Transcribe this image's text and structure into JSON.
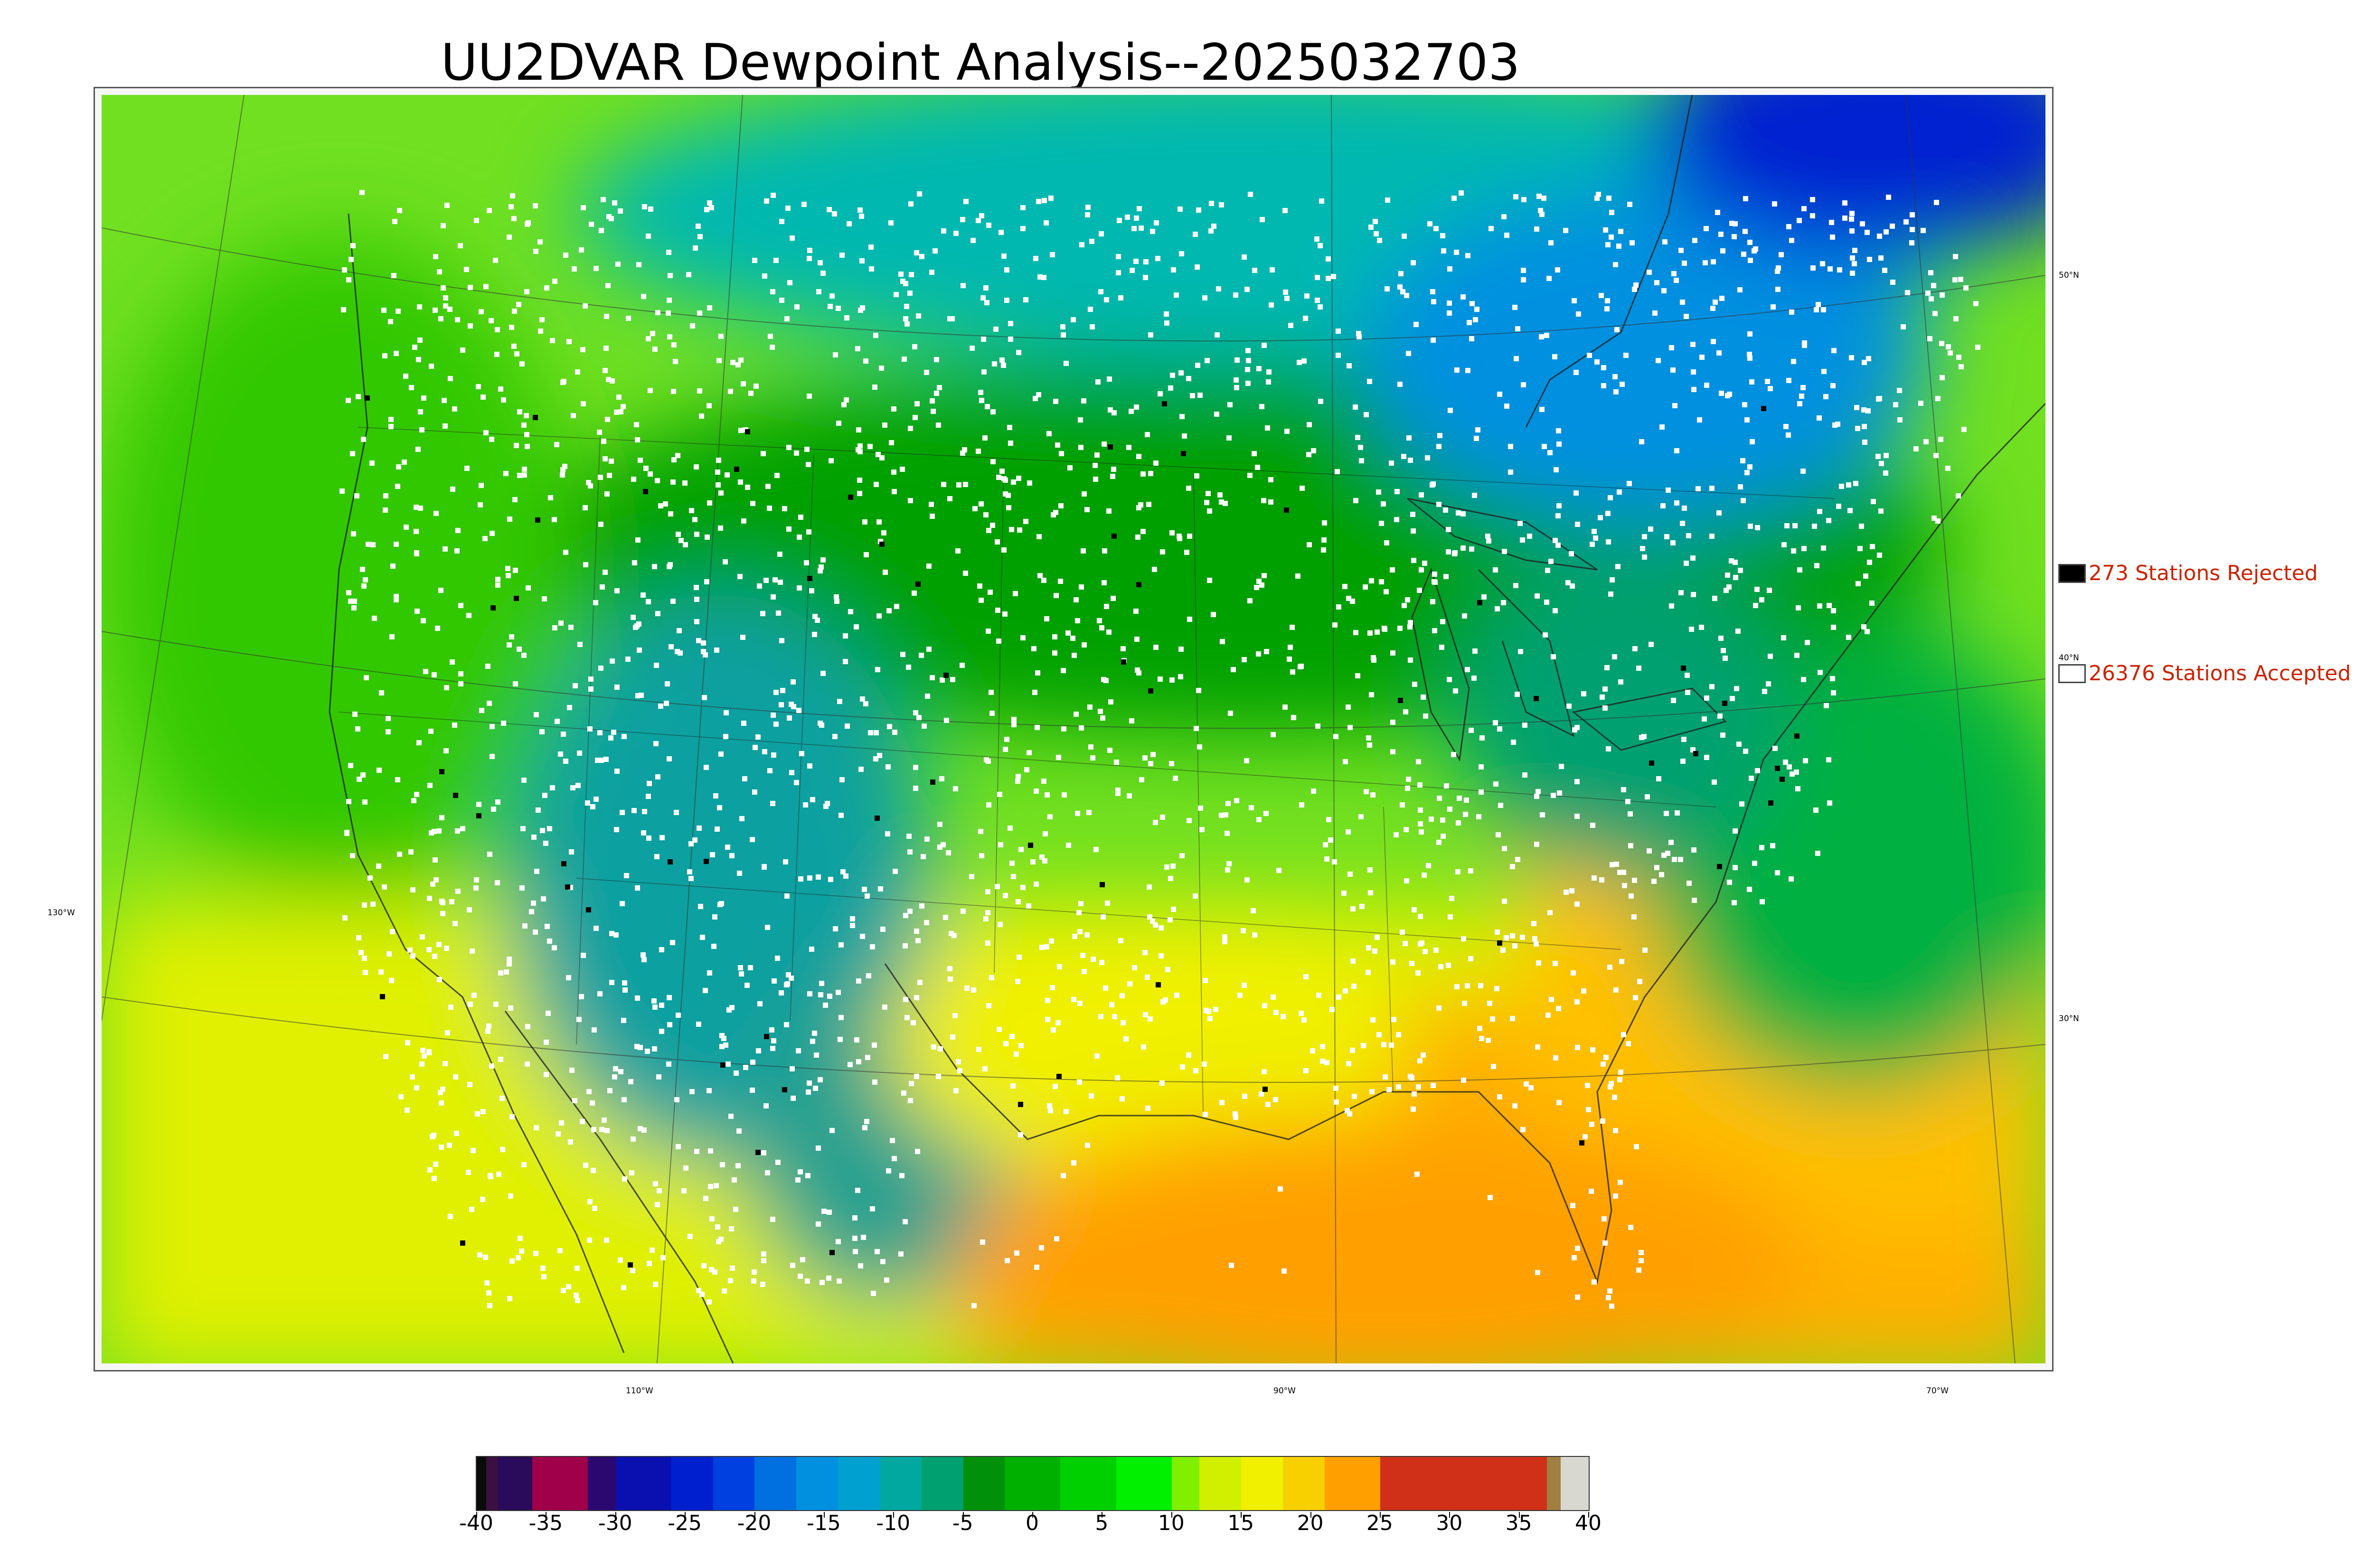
{
  "title": "UU2DVAR Dewpoint Analysis--2025032703",
  "legend": {
    "rejected": {
      "label": "273 Stations Rejected",
      "color": "#000000"
    },
    "accepted": {
      "label": "26376 Stations Accepted",
      "color": "#ffffff"
    }
  },
  "latitude_labels": [
    "50°N",
    "40°N",
    "30°N"
  ],
  "longitude_labels": [
    "130°W",
    "110°W",
    "90°W",
    "70°W"
  ],
  "colorbar": {
    "min": -40,
    "max": 40,
    "tick_labels": [
      "-40",
      "-35",
      "-30",
      "-25",
      "-20",
      "-15",
      "-10",
      "-5",
      "0",
      "5",
      "10",
      "15",
      "20",
      "25",
      "30",
      "35",
      "40"
    ],
    "segments": [
      {
        "from": -40,
        "to": -39.3,
        "color": "#0a0a0a"
      },
      {
        "from": -39.3,
        "to": -38.5,
        "color": "#3a1040"
      },
      {
        "from": -38.5,
        "to": -36,
        "color": "#2a0a5a"
      },
      {
        "from": -36,
        "to": -32,
        "color": "#a0004a"
      },
      {
        "from": -32,
        "to": -30,
        "color": "#2a0870"
      },
      {
        "from": -30,
        "to": -26,
        "color": "#0a10b0"
      },
      {
        "from": -26,
        "to": -23,
        "color": "#0020d0"
      },
      {
        "from": -23,
        "to": -20,
        "color": "#0040e0"
      },
      {
        "from": -20,
        "to": -17,
        "color": "#0070e0"
      },
      {
        "from": -17,
        "to": -14,
        "color": "#0090e0"
      },
      {
        "from": -14,
        "to": -11,
        "color": "#00a0d0"
      },
      {
        "from": -11,
        "to": -8,
        "color": "#00a8a0"
      },
      {
        "from": -8,
        "to": -5,
        "color": "#00a070"
      },
      {
        "from": -5,
        "to": -2,
        "color": "#00900a"
      },
      {
        "from": -2,
        "to": 2,
        "color": "#00b000"
      },
      {
        "from": 2,
        "to": 6,
        "color": "#00d000"
      },
      {
        "from": 6,
        "to": 10,
        "color": "#00f000"
      },
      {
        "from": 10,
        "to": 12,
        "color": "#80f000"
      },
      {
        "from": 12,
        "to": 15,
        "color": "#d0f000"
      },
      {
        "from": 15,
        "to": 18,
        "color": "#f0f000"
      },
      {
        "from": 18,
        "to": 21,
        "color": "#f8d000"
      },
      {
        "from": 21,
        "to": 25,
        "color": "#ffa000"
      },
      {
        "from": 25,
        "to": 37,
        "color": "#d03018"
      },
      {
        "from": 37,
        "to": 38,
        "color": "#a08040"
      },
      {
        "from": 38,
        "to": 40,
        "color": "#d8d8d0"
      }
    ]
  }
}
